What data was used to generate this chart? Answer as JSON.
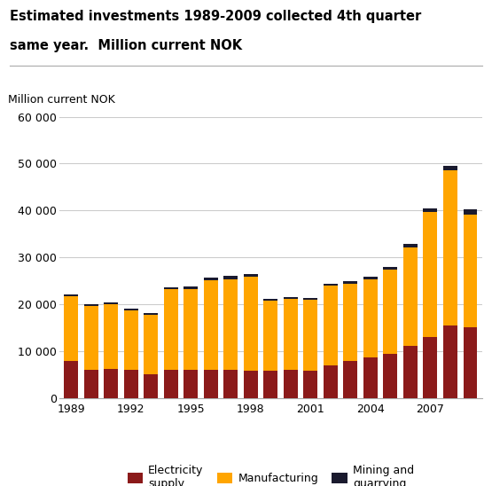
{
  "title_line1": "Estimated investments 1989-2009 collected 4th quarter",
  "title_line2": "same year.  Million current NOK",
  "ylabel": "Million current NOK",
  "years": [
    1989,
    1990,
    1991,
    1992,
    1993,
    1994,
    1995,
    1996,
    1997,
    1998,
    1999,
    2000,
    2001,
    2002,
    2003,
    2004,
    2005,
    2006,
    2007,
    2008,
    2009
  ],
  "electricity_supply": [
    8000,
    6200,
    6300,
    6100,
    5200,
    6200,
    6200,
    6100,
    6200,
    5900,
    5900,
    6200,
    6000,
    7000,
    8000,
    8800,
    9500,
    11200,
    13000,
    15500,
    15200
  ],
  "manufacturing": [
    13700,
    13500,
    13800,
    12700,
    12600,
    17000,
    17000,
    19000,
    19200,
    20000,
    15000,
    15000,
    15000,
    17000,
    16500,
    16500,
    18000,
    21000,
    26800,
    33000,
    24000
  ],
  "mining_quarrying": [
    500,
    400,
    400,
    400,
    400,
    400,
    700,
    700,
    700,
    600,
    400,
    400,
    400,
    400,
    500,
    700,
    500,
    800,
    700,
    1000,
    1000
  ],
  "electricity_color": "#8B1A1A",
  "manufacturing_color": "#FFA500",
  "mining_color": "#1a1a2e",
  "ylim": [
    0,
    60000
  ],
  "yticks": [
    0,
    10000,
    20000,
    30000,
    40000,
    50000,
    60000
  ],
  "ytick_labels": [
    "0",
    "10 000",
    "20 000",
    "30 000",
    "40 000",
    "50 000",
    "60 000"
  ],
  "grid_color": "#cccccc"
}
